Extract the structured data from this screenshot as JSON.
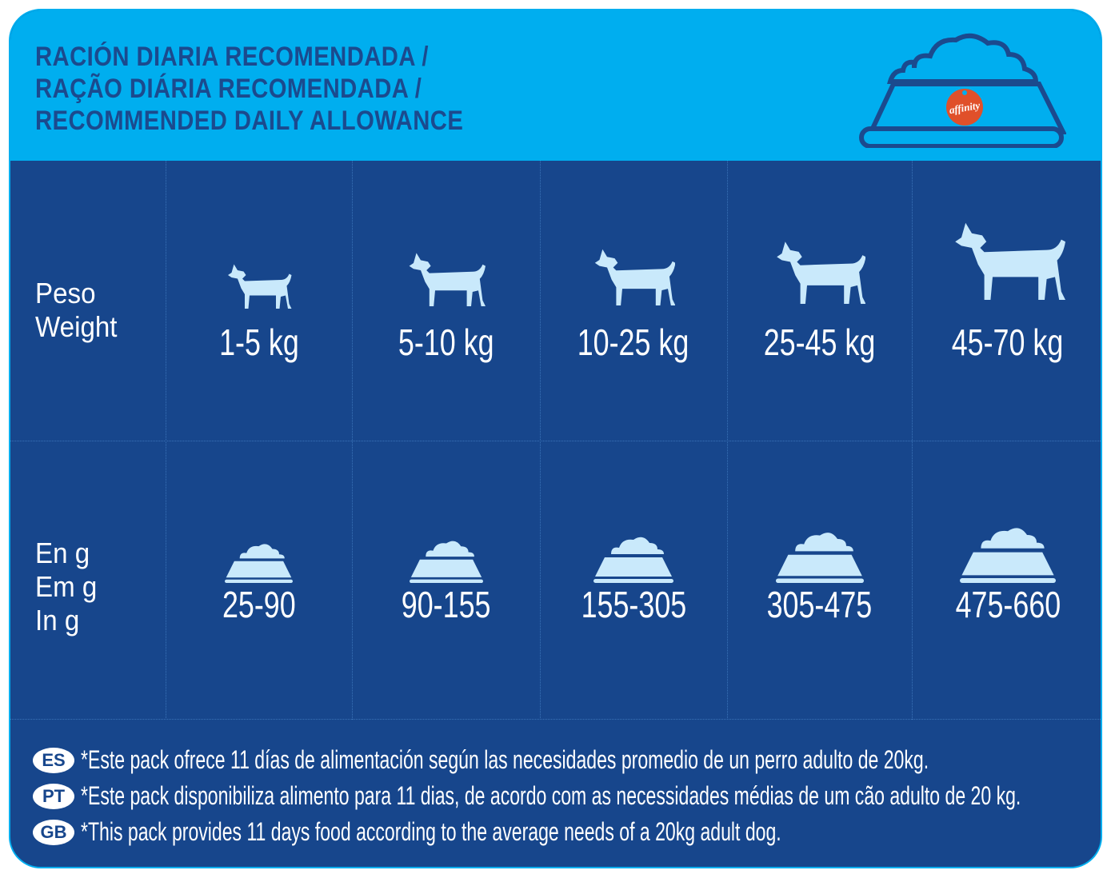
{
  "header": {
    "title_lines": [
      "RACIÓN DIARIA RECOMENDADA /",
      "RAÇÃO DIÁRIA RECOMENDADA /",
      "RECOMMENDED DAILY ALLOWANCE"
    ],
    "logo_text": "affinity"
  },
  "colors": {
    "header_bg": "#00AEEF",
    "body_bg": "#17468C",
    "title": "#1B4A8E",
    "icon": "#C9E9FB",
    "logo": "#E0502A"
  },
  "weight_row": {
    "label_lines": [
      "Peso",
      "Weight"
    ],
    "values": [
      "1-5 kg",
      "5-10 kg",
      "10-25 kg",
      "25-45 kg",
      "45-70 kg"
    ]
  },
  "grams_row": {
    "label_lines": [
      "En g",
      "Em g",
      "In g"
    ],
    "values": [
      "25-90",
      "90-155",
      "155-305",
      "305-475",
      "475-660"
    ]
  },
  "notes": [
    {
      "lang": "ES",
      "text": "*Este pack ofrece 11 días de alimentación según las necesidades promedio de un perro adulto de 20kg."
    },
    {
      "lang": "PT",
      "text": "*Este pack disponibiliza alimento para 11 dias, de acordo com as necessidades médias de um cão adulto de 20 kg."
    },
    {
      "lang": "GB",
      "text": "*This pack provides 11 days food according to the average needs of a 20kg adult dog."
    }
  ]
}
